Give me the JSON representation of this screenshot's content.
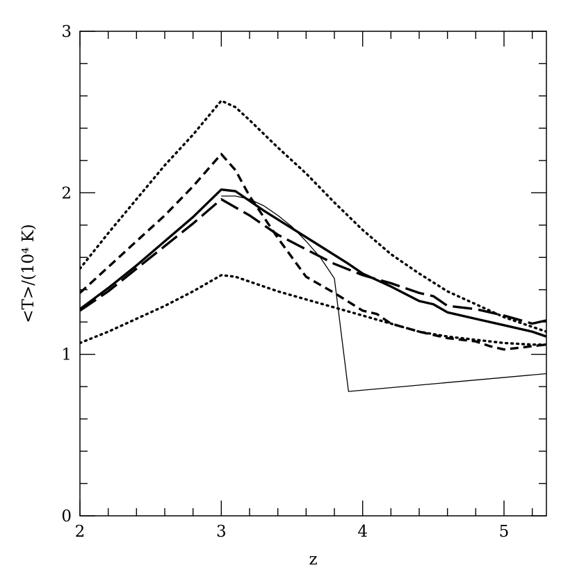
{
  "chart_data": {
    "type": "line",
    "xlabel": "z",
    "ylabel": "<T>/(10⁴ K)",
    "xlim": [
      2,
      5.3
    ],
    "ylim": [
      0,
      3
    ],
    "x_ticks": [
      2,
      3,
      4,
      5
    ],
    "x_tick_labels": [
      "2",
      "3",
      "4",
      "5"
    ],
    "x_minor_step": 0.2,
    "y_ticks": [
      0,
      1,
      2,
      3
    ],
    "y_tick_labels": [
      "0",
      "1",
      "2",
      "3"
    ],
    "y_minor_step": 0.2,
    "grid": false,
    "legend": "none",
    "series": [
      {
        "style": "dotted",
        "weight": "thick",
        "color": "#000000",
        "x": [
          2.0,
          2.2,
          2.4,
          2.6,
          2.8,
          3.0,
          3.1,
          3.2,
          3.4,
          3.6,
          3.8,
          4.0,
          4.2,
          4.4,
          4.6,
          4.8,
          5.0,
          5.2,
          5.3
        ],
        "y": [
          1.53,
          1.75,
          1.96,
          2.17,
          2.36,
          2.57,
          2.53,
          2.45,
          2.28,
          2.12,
          1.94,
          1.77,
          1.62,
          1.5,
          1.39,
          1.31,
          1.23,
          1.17,
          1.14
        ]
      },
      {
        "style": "short-dashed",
        "weight": "thick",
        "color": "#000000",
        "x": [
          2.0,
          2.2,
          2.4,
          2.6,
          2.8,
          3.0,
          3.1,
          3.2,
          3.4,
          3.6,
          3.8,
          4.0,
          4.1,
          4.2,
          4.4,
          4.6,
          4.8,
          4.9,
          5.0,
          5.1,
          5.2,
          5.3
        ],
        "y": [
          1.38,
          1.54,
          1.7,
          1.86,
          2.04,
          2.24,
          2.14,
          1.98,
          1.72,
          1.48,
          1.38,
          1.27,
          1.25,
          1.19,
          1.14,
          1.1,
          1.08,
          1.05,
          1.03,
          1.04,
          1.05,
          1.06
        ]
      },
      {
        "style": "solid",
        "weight": "thick",
        "color": "#000000",
        "x": [
          2.0,
          2.2,
          2.4,
          2.6,
          2.8,
          3.0,
          3.1,
          3.3,
          3.5,
          3.7,
          3.9,
          4.0,
          4.2,
          4.4,
          4.5,
          4.6,
          4.8,
          5.0,
          5.2,
          5.3
        ],
        "y": [
          1.28,
          1.41,
          1.55,
          1.7,
          1.85,
          2.02,
          2.01,
          1.89,
          1.78,
          1.67,
          1.56,
          1.5,
          1.42,
          1.33,
          1.31,
          1.26,
          1.22,
          1.18,
          1.14,
          1.11
        ]
      },
      {
        "style": "long-dashed",
        "weight": "thick",
        "color": "#000000",
        "x": [
          2.0,
          2.2,
          2.4,
          2.6,
          2.8,
          3.0,
          3.2,
          3.4,
          3.6,
          3.8,
          4.0,
          4.2,
          4.4,
          4.5,
          4.6,
          4.8,
          5.0,
          5.2,
          5.3
        ],
        "y": [
          1.27,
          1.39,
          1.53,
          1.67,
          1.81,
          1.96,
          1.86,
          1.74,
          1.65,
          1.56,
          1.49,
          1.44,
          1.38,
          1.36,
          1.3,
          1.28,
          1.24,
          1.19,
          1.21
        ]
      },
      {
        "style": "dotted",
        "weight": "thick",
        "color": "#000000",
        "x": [
          2.0,
          2.2,
          2.4,
          2.6,
          2.8,
          3.0,
          3.1,
          3.2,
          3.4,
          3.6,
          3.8,
          4.0,
          4.2,
          4.4,
          4.6,
          4.8,
          5.0,
          5.2,
          5.3
        ],
        "y": [
          1.07,
          1.14,
          1.22,
          1.3,
          1.39,
          1.49,
          1.48,
          1.45,
          1.39,
          1.34,
          1.29,
          1.24,
          1.19,
          1.14,
          1.11,
          1.09,
          1.07,
          1.06,
          1.06
        ]
      },
      {
        "style": "solid",
        "weight": "thin",
        "color": "#000000",
        "x": [
          3.0,
          3.1,
          3.2,
          3.3,
          3.4,
          3.5,
          3.6,
          3.7,
          3.8,
          3.9,
          5.3
        ],
        "y": [
          1.98,
          1.98,
          1.96,
          1.92,
          1.86,
          1.79,
          1.7,
          1.6,
          1.47,
          0.77,
          0.88
        ]
      }
    ]
  }
}
